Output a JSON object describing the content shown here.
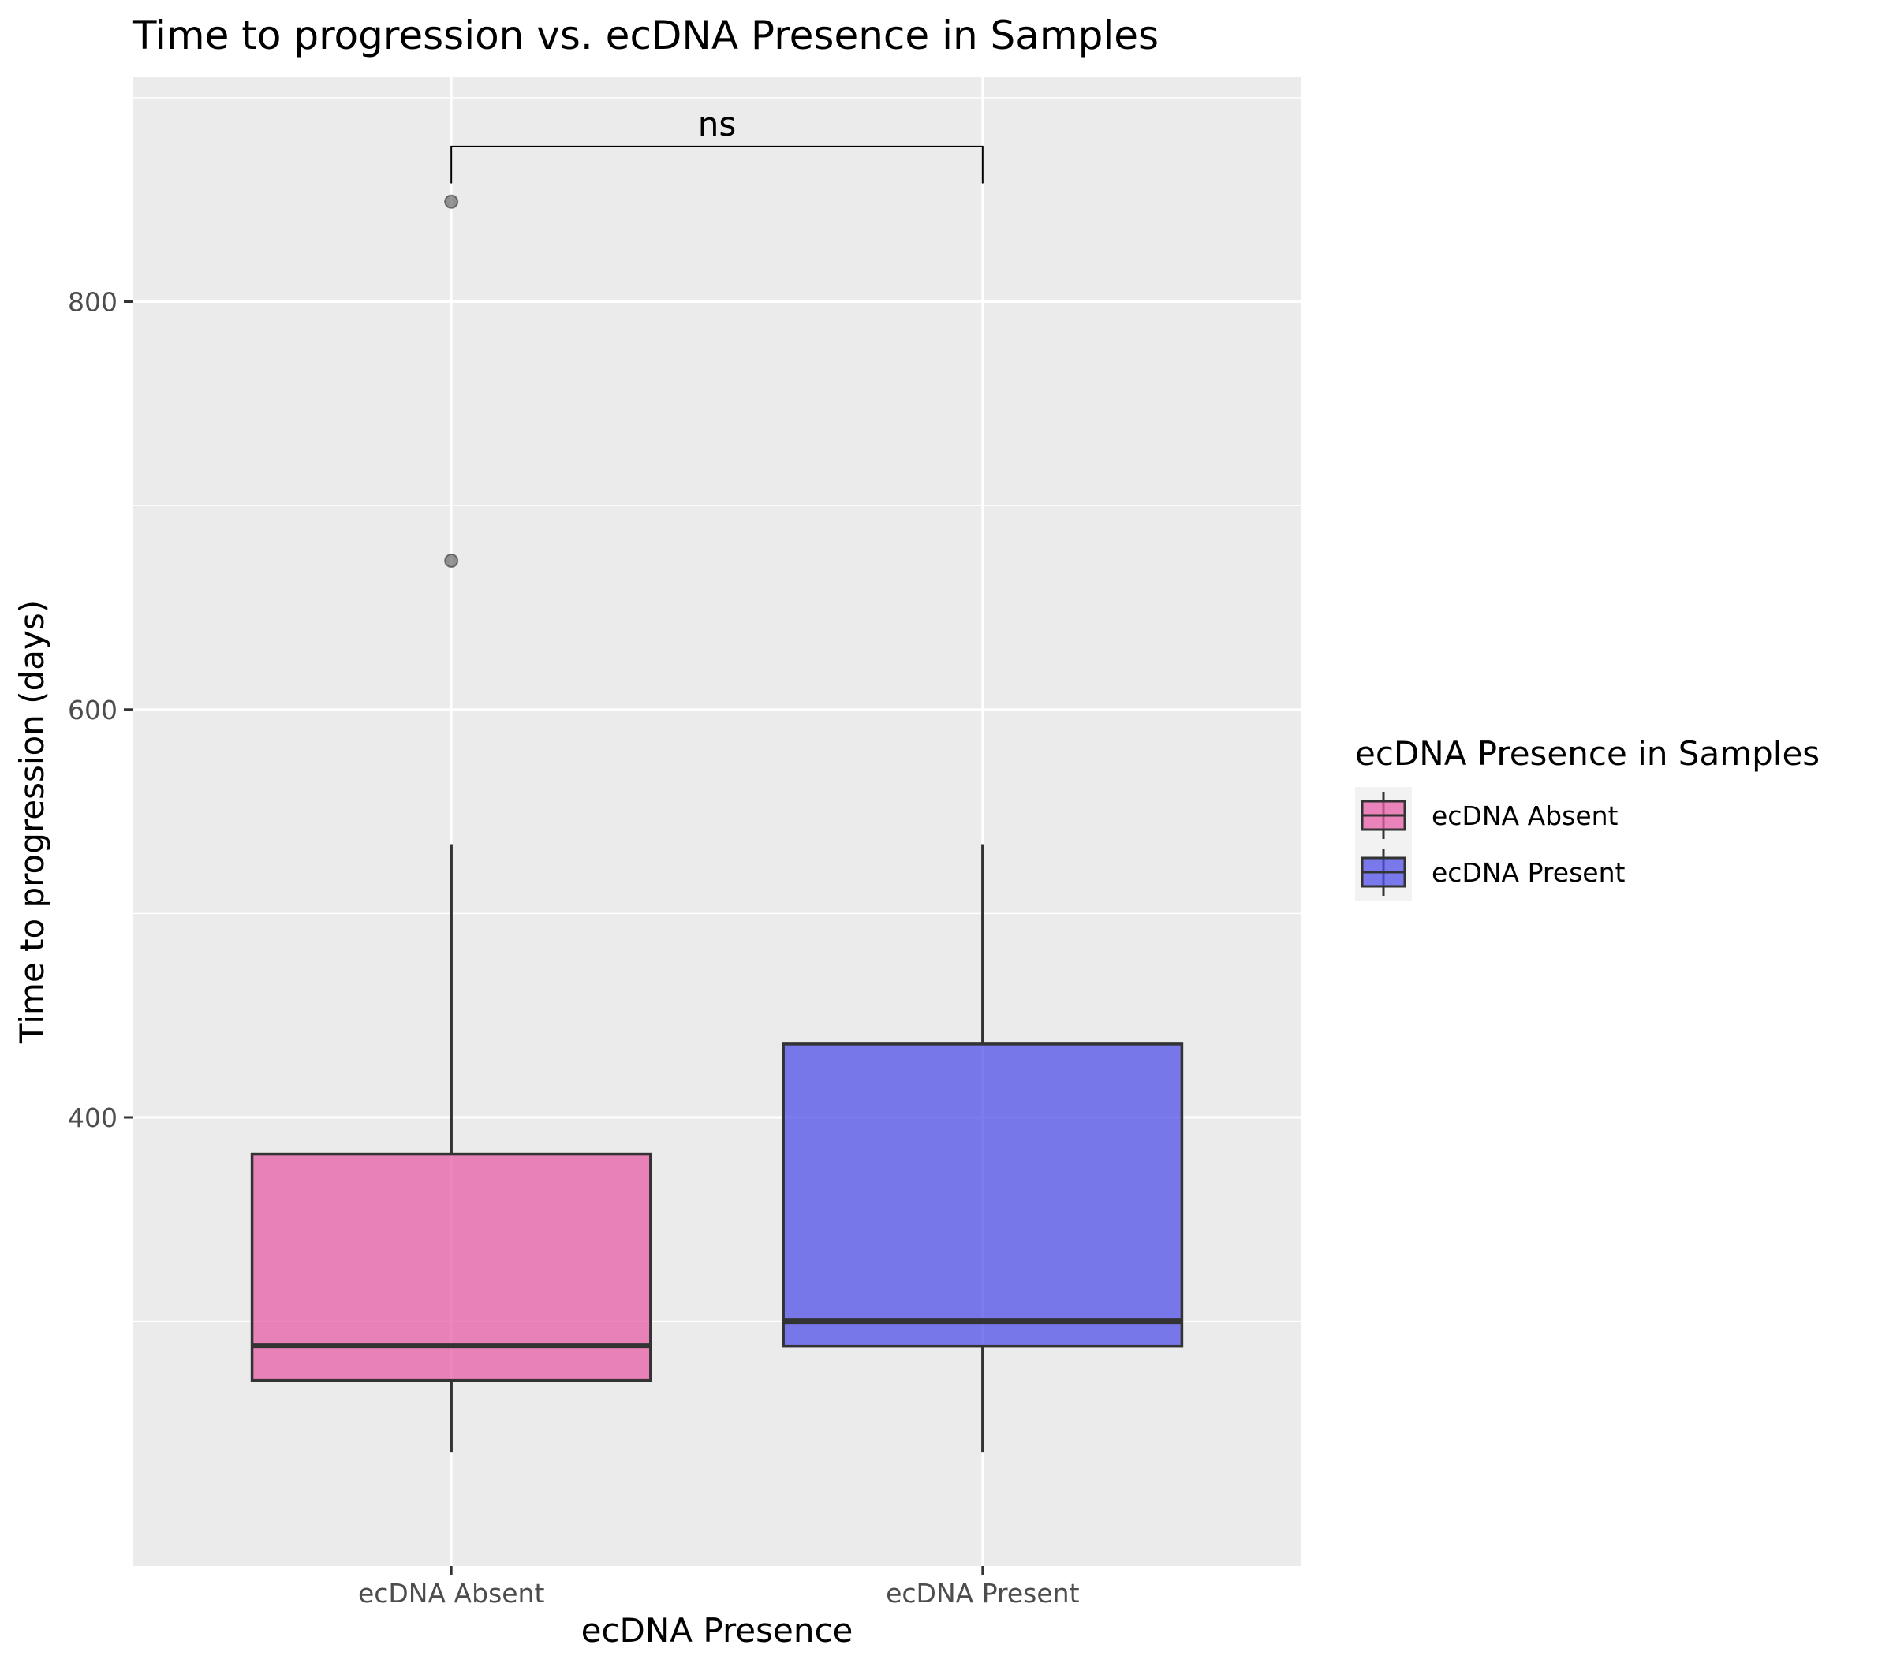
{
  "chart_data": {
    "type": "boxplot",
    "title": "Time to progression vs. ecDNA Presence in Samples",
    "xlabel": "ecDNA Presence",
    "ylabel": "Time to progression (days)",
    "ylim": [
      180,
      910
    ],
    "yticks": [
      400,
      600,
      800
    ],
    "grid": true,
    "categories": [
      "ecDNA Absent",
      "ecDNA Present"
    ],
    "boxes": [
      {
        "category": "ecDNA Absent",
        "whisker_low": 236,
        "q1": 271,
        "median": 288,
        "q3": 382,
        "whisker_high": 534,
        "outliers": [
          673,
          849
        ],
        "color": "#e75ea7"
      },
      {
        "category": "ecDNA Present",
        "whisker_low": 236,
        "q1": 288,
        "median": 300,
        "q3": 436,
        "whisker_high": 534,
        "outliers": [],
        "color": "#5050e8"
      }
    ],
    "significance": {
      "label": "ns",
      "y_bar": 876,
      "y_tip": 858
    },
    "legend": {
      "title": "ecDNA Presence in Samples",
      "position": "right",
      "entries": [
        {
          "label": "ecDNA Absent",
          "color": "#e75ea7"
        },
        {
          "label": "ecDNA Present",
          "color": "#5050e8"
        }
      ]
    }
  }
}
